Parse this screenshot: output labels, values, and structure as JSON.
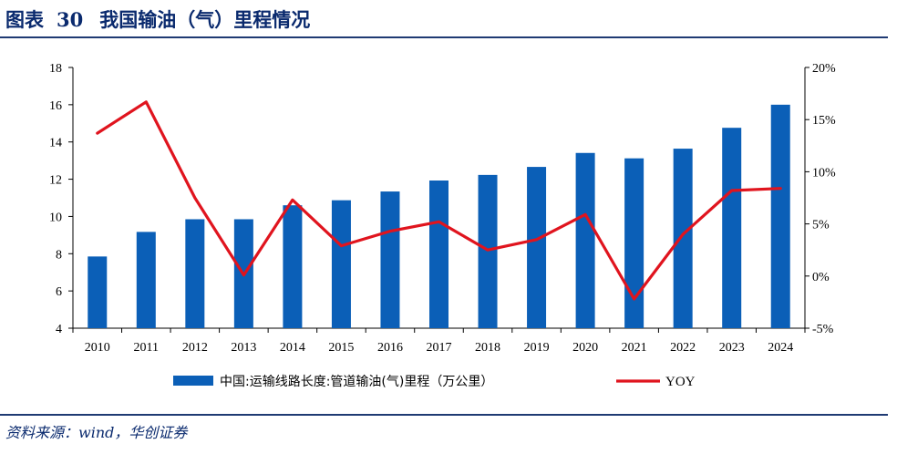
{
  "header": {
    "title_prefix": "图表",
    "title_number": "30",
    "title_text": "我国输油（气）里程情况"
  },
  "source": "资料来源：wind，华创证券",
  "chart_data": {
    "type": "bar+line",
    "categories": [
      "2010",
      "2011",
      "2012",
      "2013",
      "2014",
      "2015",
      "2016",
      "2017",
      "2018",
      "2019",
      "2020",
      "2021",
      "2022",
      "2023",
      "2024"
    ],
    "series": [
      {
        "name": "中国:运输线路长度:管道输油(气)里程（万公里）",
        "type": "bar",
        "axis": "left",
        "color": "#0b5fb7",
        "values": [
          7.85,
          9.17,
          9.85,
          9.85,
          10.6,
          10.87,
          11.34,
          11.93,
          12.23,
          12.66,
          13.41,
          13.12,
          13.64,
          14.76,
          16.0
        ]
      },
      {
        "name": "YOY",
        "type": "line",
        "axis": "right",
        "color": "#e0141e",
        "values": [
          13.7,
          16.7,
          7.5,
          0.1,
          7.3,
          2.9,
          4.3,
          5.2,
          2.5,
          3.5,
          5.9,
          -2.2,
          4.0,
          8.2,
          8.4
        ]
      }
    ],
    "y_left": {
      "min": 4,
      "max": 18,
      "ticks": [
        "4",
        "6",
        "8",
        "10",
        "12",
        "14",
        "16",
        "18"
      ]
    },
    "y_right": {
      "min": -5,
      "max": 20,
      "ticks": [
        "-5%",
        "0%",
        "5%",
        "10%",
        "15%",
        "20%"
      ]
    },
    "legend_position": "bottom",
    "grid": false
  }
}
